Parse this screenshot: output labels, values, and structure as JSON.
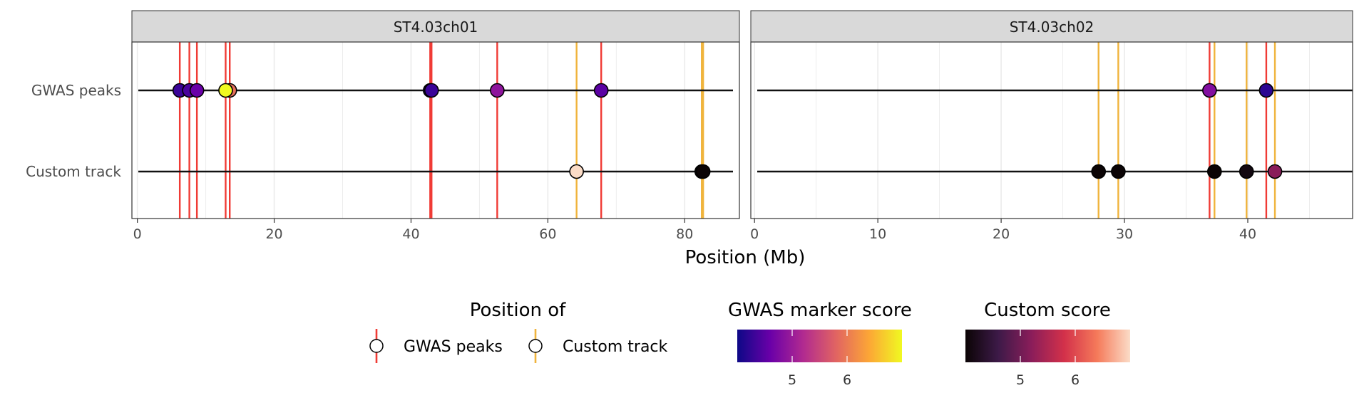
{
  "chart_data": {
    "type": "scatter",
    "xlabel": "Position (Mb)",
    "tracks": [
      "GWAS peaks",
      "Custom track"
    ],
    "colors": {
      "gwas_line": "#f03b35",
      "custom_line": "#f0b43c",
      "panel_header": "#d9d9d9",
      "grid": "#ebebeb"
    },
    "panels": [
      {
        "label": "ST4.03ch01",
        "xlim": [
          -0.8,
          88
        ],
        "xticks": [
          0,
          20,
          40,
          60,
          80
        ],
        "gwas_lines": [
          6.2,
          7.6,
          8.7,
          12.9,
          13.5,
          42.8,
          43.0,
          52.6,
          67.8
        ],
        "custom_lines": [
          64.2,
          82.5,
          82.7
        ],
        "points": [
          {
            "track": "GWAS peaks",
            "x": 6.2,
            "score": 4.3
          },
          {
            "track": "GWAS peaks",
            "x": 7.6,
            "score": 4.4
          },
          {
            "track": "GWAS peaks",
            "x": 8.7,
            "score": 4.6
          },
          {
            "track": "GWAS peaks",
            "x": 13.5,
            "score": 5.9
          },
          {
            "track": "GWAS peaks",
            "x": 12.9,
            "score": 7.4
          },
          {
            "track": "GWAS peaks",
            "x": 42.8,
            "score": 4.2
          },
          {
            "track": "GWAS peaks",
            "x": 43.0,
            "score": 4.3
          },
          {
            "track": "GWAS peaks",
            "x": 52.6,
            "score": 4.9
          },
          {
            "track": "GWAS peaks",
            "x": 67.8,
            "score": 4.5
          },
          {
            "track": "Custom track",
            "x": 64.2,
            "score": 7.5
          },
          {
            "track": "Custom track",
            "x": 82.5,
            "score": 4.0
          },
          {
            "track": "Custom track",
            "x": 82.7,
            "score": 4.0
          }
        ]
      },
      {
        "label": "ST4.03ch02",
        "xlim": [
          -0.3,
          48.5
        ],
        "xticks": [
          0,
          10,
          20,
          30,
          40
        ],
        "gwas_lines": [
          36.9,
          41.5
        ],
        "custom_lines": [
          27.9,
          29.5,
          37.3,
          39.9,
          42.2
        ],
        "points": [
          {
            "track": "GWAS peaks",
            "x": 36.9,
            "score": 4.8
          },
          {
            "track": "GWAS peaks",
            "x": 41.5,
            "score": 4.2
          },
          {
            "track": "Custom track",
            "x": 27.9,
            "score": 4.0
          },
          {
            "track": "Custom track",
            "x": 29.5,
            "score": 4.0
          },
          {
            "track": "Custom track",
            "x": 37.3,
            "score": 4.0
          },
          {
            "track": "Custom track",
            "x": 39.9,
            "score": 4.1
          },
          {
            "track": "Custom track",
            "x": 42.2,
            "score": 5.2
          }
        ]
      }
    ],
    "legends": {
      "position": {
        "title": "Position of",
        "items": [
          "GWAS peaks",
          "Custom track"
        ]
      },
      "gwas_score": {
        "title": "GWAS marker score",
        "range": [
          4.0,
          7.0
        ],
        "ticks": [
          5,
          6
        ],
        "stops": [
          "#0d0887",
          "#6a00a8",
          "#b12a90",
          "#e16462",
          "#fca636",
          "#f0f921"
        ]
      },
      "custom_score": {
        "title": "Custom score",
        "range": [
          4.0,
          7.0
        ],
        "ticks": [
          5,
          6
        ],
        "stops": [
          "#0b0405",
          "#3d1a48",
          "#8a1d5a",
          "#d3314a",
          "#f57a5a",
          "#fbdcc7"
        ]
      }
    }
  }
}
